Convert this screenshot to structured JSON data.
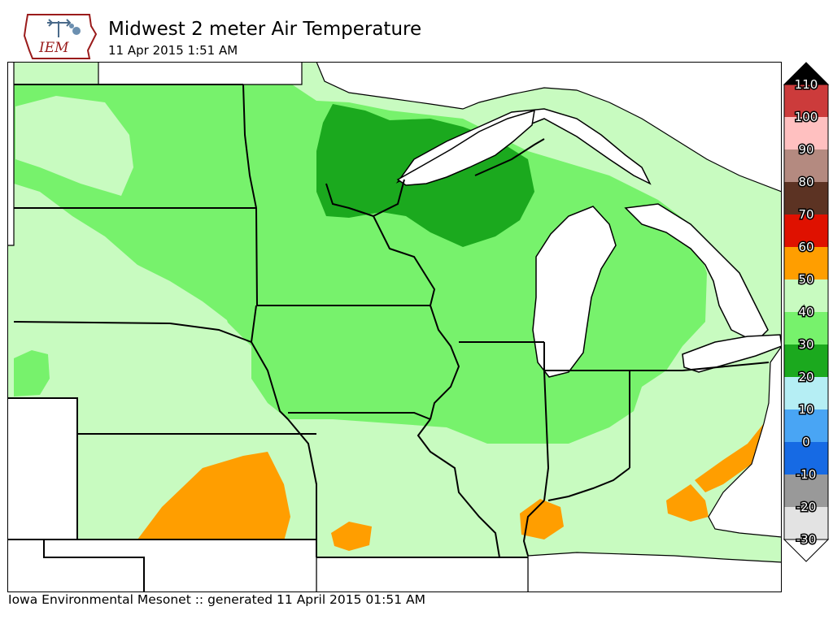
{
  "header": {
    "logo_text": "IEM",
    "title": "Midwest 2 meter Air Temperature",
    "subtitle": "11 Apr 2015 1:51 AM"
  },
  "legend": {
    "ticks": [
      "110",
      "100",
      "90",
      "80",
      "70",
      "60",
      "50",
      "40",
      "30",
      "20",
      "10",
      "0",
      "-10",
      "-20",
      "-30"
    ],
    "bins": [
      {
        "range": "100-110",
        "color": "#cc3b3b"
      },
      {
        "range": "90-100",
        "color": "#ffc0c0"
      },
      {
        "range": "80-90",
        "color": "#b48a80"
      },
      {
        "range": "70-80",
        "color": "#5c3323"
      },
      {
        "range": "60-70",
        "color": "#df1100"
      },
      {
        "range": "50-60",
        "color": "#ff9e00"
      },
      {
        "range": "40-50",
        "color": "#c8fbc0"
      },
      {
        "range": "30-40",
        "color": "#77f26c"
      },
      {
        "range": "20-30",
        "color": "#1ba91e"
      },
      {
        "range": "10-20",
        "color": "#b5eef4"
      },
      {
        "range": "0-10",
        "color": "#49a5f4"
      },
      {
        "range": "-10-0",
        "color": "#166ae4"
      },
      {
        "range": "-20--10",
        "color": "#999999"
      },
      {
        "range": "-30--20",
        "color": "#e3e3e3"
      }
    ],
    "over_color": "#000000",
    "under_color": "#ffffff"
  },
  "map": {
    "land_color": "#c8fbc0",
    "water_color": "#ffffff",
    "border_color": "#000000"
  },
  "footer": {
    "credit": "Iowa Environmental Mesonet :: generated 11 April 2015 01:51 AM"
  }
}
